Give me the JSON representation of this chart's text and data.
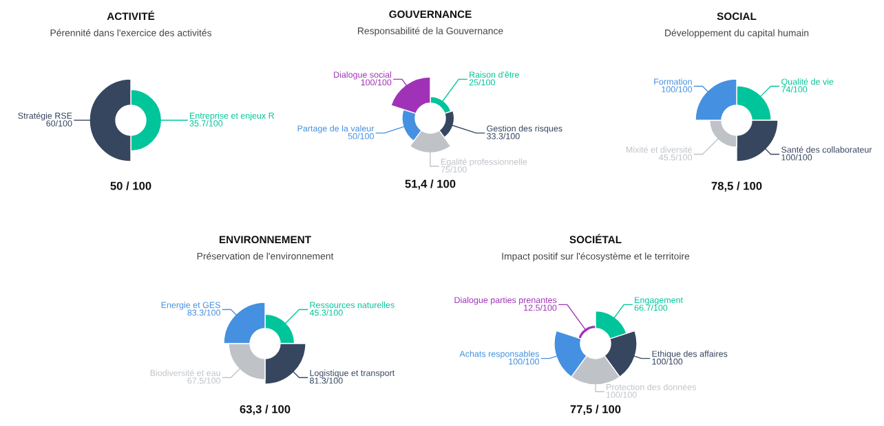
{
  "chart_data": [
    {
      "type": "other",
      "title": "ACTIVITÉ",
      "subtitle": "Pérennité dans l'exercice des activités",
      "categories": [
        "Entreprise et enjeux R",
        "Stratégie RSE"
      ],
      "values": [
        35.7,
        60
      ],
      "value_labels": [
        "35.7/100",
        "60/100"
      ],
      "colors": [
        "#00c49a",
        "#36465f"
      ],
      "annotations": [
        "50 / 100"
      ]
    },
    {
      "type": "other",
      "title": "GOUVERNANCE",
      "subtitle": "Responsabilité de la Gouvernance",
      "categories": [
        "Raison d'être",
        "Gestion des risques",
        "Egalité professionnelle",
        "Partage de la valeur",
        "Dialogue social"
      ],
      "values": [
        25,
        33.3,
        75,
        50,
        100
      ],
      "value_labels": [
        "25/100",
        "33.3/100",
        "75/100",
        "50/100",
        "100/100"
      ],
      "colors": [
        "#00c49a",
        "#36465f",
        "#bfc3c8",
        "#4590e0",
        "#a032b8"
      ],
      "annotations": [
        "51,4 / 100"
      ]
    },
    {
      "type": "other",
      "title": "SOCIAL",
      "subtitle": "Développement du capital humain",
      "categories": [
        "Qualité de vie",
        "Santé des collaborateur",
        "Mixité et diversité",
        "Formation"
      ],
      "values": [
        74,
        100,
        45.5,
        100
      ],
      "value_labels": [
        "74/100",
        "100/100",
        "45.5/100",
        "100/100"
      ],
      "colors": [
        "#00c49a",
        "#36465f",
        "#bfc3c8",
        "#4590e0"
      ],
      "annotations": [
        "78,5 / 100"
      ]
    },
    {
      "type": "other",
      "title": "ENVIRONNEMENT",
      "subtitle": "Préservation de l'environnement",
      "categories": [
        "Ressources naturelles",
        "Logistique et transport",
        "Biodiversité et eau",
        "Energie et GES"
      ],
      "values": [
        45.3,
        81.3,
        67.5,
        83.3
      ],
      "value_labels": [
        "45.3/100",
        "81.3/100",
        "67.5/100",
        "83.3/100"
      ],
      "colors": [
        "#00c49a",
        "#36465f",
        "#bfc3c8",
        "#4590e0"
      ],
      "annotations": [
        "63,3 / 100"
      ]
    },
    {
      "type": "other",
      "title": "SOCIÉTAL",
      "subtitle": "Impact positif sur l'écosystème et le territoire",
      "categories": [
        "Engagement",
        "Ethique des affaires",
        "Protection des données",
        "Achats responsables",
        "Dialogue parties prenantes"
      ],
      "values": [
        66.7,
        100,
        100,
        100,
        12.5
      ],
      "value_labels": [
        "66.7/100",
        "100/100",
        "100/100",
        "100/100",
        "12.5/100"
      ],
      "colors": [
        "#00c49a",
        "#36465f",
        "#bfc3c8",
        "#4590e0",
        "#a032b8"
      ],
      "annotations": [
        "77,5 / 100"
      ]
    }
  ]
}
